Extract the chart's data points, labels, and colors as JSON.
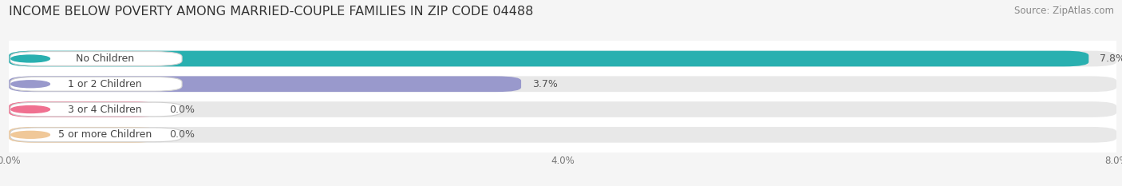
{
  "title": "INCOME BELOW POVERTY AMONG MARRIED-COUPLE FAMILIES IN ZIP CODE 04488",
  "source": "Source: ZipAtlas.com",
  "categories": [
    "No Children",
    "1 or 2 Children",
    "3 or 4 Children",
    "5 or more Children"
  ],
  "values": [
    7.8,
    3.7,
    0.0,
    0.0
  ],
  "bar_colors": [
    "#29b0b0",
    "#9999cc",
    "#f07090",
    "#f0c898"
  ],
  "xlim": [
    0,
    8.0
  ],
  "xticks": [
    0.0,
    4.0,
    8.0
  ],
  "xtick_labels": [
    "0.0%",
    "4.0%",
    "8.0%"
  ],
  "figure_bg_color": "#f5f5f5",
  "plot_bg_color": "#ffffff",
  "bar_bg_color": "#e8e8e8",
  "title_fontsize": 11.5,
  "source_fontsize": 8.5,
  "label_fontsize": 9,
  "value_fontsize": 9
}
